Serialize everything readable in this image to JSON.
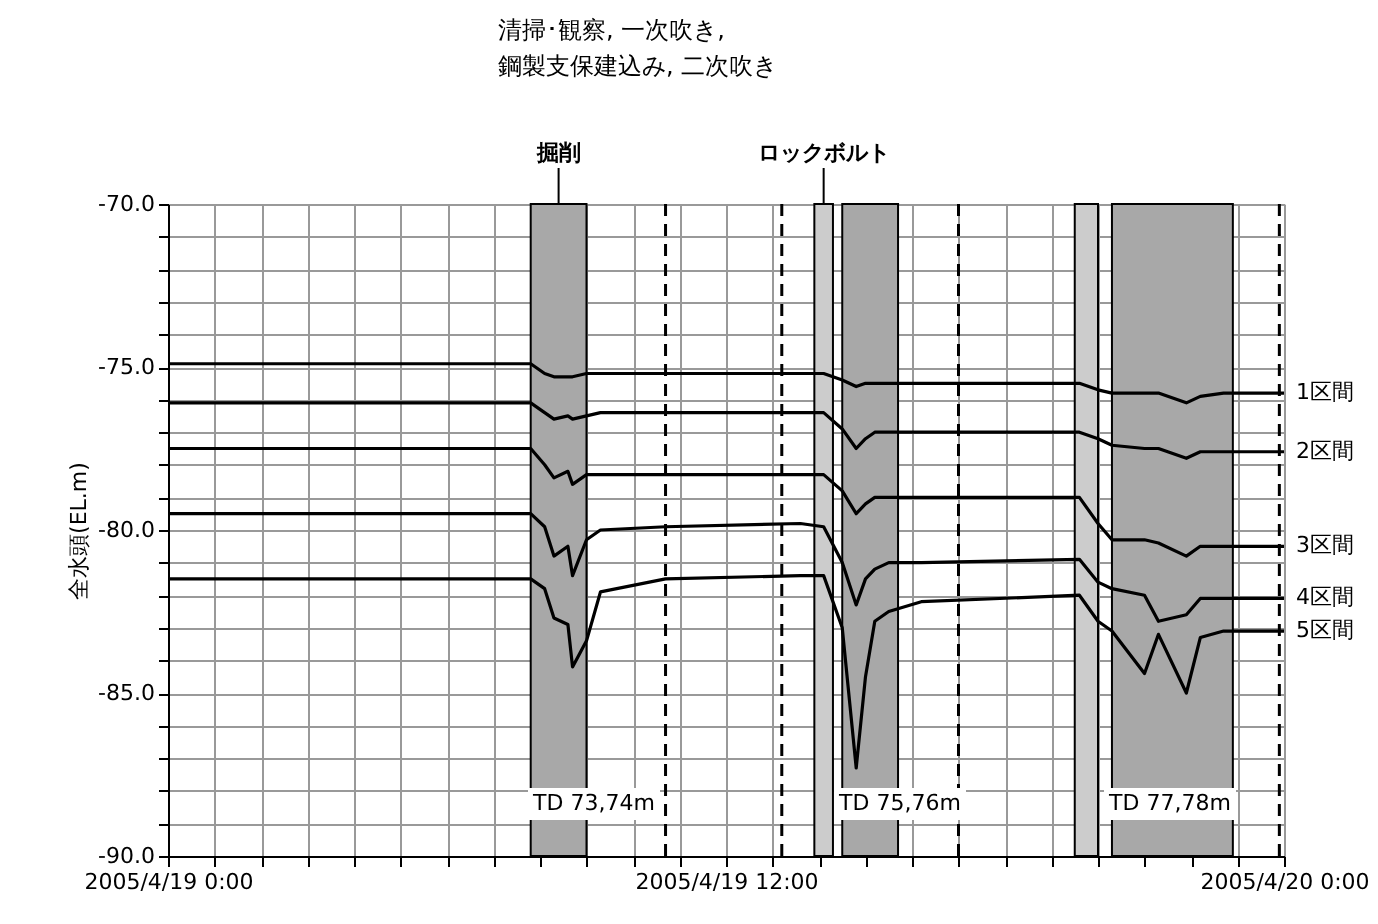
{
  "chart_data": {
    "type": "line",
    "ylabel": "全水頭(EL.m)",
    "x": [
      "2005-04-19T00:00",
      "2005-04-19T07:48",
      "2005-04-19T08:06",
      "2005-04-19T08:18",
      "2005-04-19T08:36",
      "2005-04-19T08:42",
      "2005-04-19T09:00",
      "2005-04-19T09:18",
      "2005-04-19T10:42",
      "2005-04-19T13:36",
      "2005-04-19T14:06",
      "2005-04-19T14:30",
      "2005-04-19T14:48",
      "2005-04-19T15:00",
      "2005-04-19T15:12",
      "2005-04-19T15:30",
      "2005-04-19T16:12",
      "2005-04-19T19:36",
      "2005-04-19T20:00",
      "2005-04-19T20:18",
      "2005-04-19T21:00",
      "2005-04-19T21:18",
      "2005-04-19T21:54",
      "2005-04-19T22:12",
      "2005-04-19T22:42",
      "2005-04-19T23:30",
      "2005-04-20T00:00"
    ],
    "series": [
      {
        "name": "1区間",
        "color": "#000000",
        "values": [
          -74.9,
          -74.9,
          -75.2,
          -75.3,
          -75.3,
          -75.3,
          -75.2,
          -75.2,
          -75.2,
          -75.2,
          -75.2,
          -75.4,
          -75.6,
          -75.5,
          -75.5,
          -75.5,
          -75.5,
          -75.5,
          -75.7,
          -75.8,
          -75.8,
          -75.8,
          -76.1,
          -75.9,
          -75.8,
          -75.8,
          -75.8
        ]
      },
      {
        "name": "2区間",
        "color": "#000000",
        "values": [
          -76.1,
          -76.1,
          -76.4,
          -76.6,
          -76.5,
          -76.6,
          -76.5,
          -76.4,
          -76.4,
          -76.4,
          -76.4,
          -76.9,
          -77.5,
          -77.2,
          -77.0,
          -77.0,
          -77.0,
          -77.0,
          -77.2,
          -77.4,
          -77.5,
          -77.5,
          -77.8,
          -77.6,
          -77.6,
          -77.6,
          -77.6
        ]
      },
      {
        "name": "3区間",
        "color": "#000000",
        "values": [
          -77.5,
          -77.5,
          -78.0,
          -78.4,
          -78.2,
          -78.6,
          -78.3,
          -78.3,
          -78.3,
          -78.3,
          -78.3,
          -78.8,
          -79.5,
          -79.2,
          -79.0,
          -79.0,
          -79.0,
          -79.0,
          -79.8,
          -80.3,
          -80.3,
          -80.4,
          -80.8,
          -80.5,
          -80.5,
          -80.5,
          -80.5
        ]
      },
      {
        "name": "4区間",
        "color": "#000000",
        "values": [
          -79.5,
          -79.5,
          -79.9,
          -80.8,
          -80.5,
          -81.4,
          -80.3,
          -80.0,
          -79.9,
          -79.8,
          -79.9,
          -81.0,
          -82.3,
          -81.5,
          -81.2,
          -81.0,
          -81.0,
          -80.9,
          -81.6,
          -81.8,
          -82.0,
          -82.8,
          -82.6,
          -82.1,
          -82.1,
          -82.1,
          -82.1
        ]
      },
      {
        "name": "5区間",
        "color": "#000000",
        "values": [
          -81.5,
          -81.5,
          -81.8,
          -82.7,
          -82.9,
          -84.2,
          -83.4,
          -81.9,
          -81.5,
          -81.4,
          -81.4,
          -83.0,
          -87.3,
          -84.5,
          -82.8,
          -82.5,
          -82.2,
          -82.0,
          -82.8,
          -83.1,
          -84.4,
          -83.2,
          -85.0,
          -83.3,
          -83.1,
          -83.1,
          -83.1
        ]
      }
    ],
    "xlim": [
      "2005-04-19T00:00",
      "2005-04-20T00:00"
    ],
    "xticks": [
      {
        "value": "2005-04-19T00:00",
        "label": "2005/4/19 0:00"
      },
      {
        "value": "2005-04-19T01:00",
        "label": null
      },
      {
        "value": "2005-04-19T02:00",
        "label": null
      },
      {
        "value": "2005-04-19T03:00",
        "label": null
      },
      {
        "value": "2005-04-19T04:00",
        "label": null
      },
      {
        "value": "2005-04-19T05:00",
        "label": null
      },
      {
        "value": "2005-04-19T06:00",
        "label": null
      },
      {
        "value": "2005-04-19T07:00",
        "label": null
      },
      {
        "value": "2005-04-19T08:00",
        "label": null
      },
      {
        "value": "2005-04-19T09:00",
        "label": null
      },
      {
        "value": "2005-04-19T10:00",
        "label": null
      },
      {
        "value": "2005-04-19T11:00",
        "label": null
      },
      {
        "value": "2005-04-19T12:00",
        "label": "2005/4/19 12:00"
      },
      {
        "value": "2005-04-19T13:00",
        "label": null
      },
      {
        "value": "2005-04-19T14:00",
        "label": null
      },
      {
        "value": "2005-04-19T15:00",
        "label": null
      },
      {
        "value": "2005-04-19T16:00",
        "label": null
      },
      {
        "value": "2005-04-19T17:00",
        "label": null
      },
      {
        "value": "2005-04-19T18:00",
        "label": null
      },
      {
        "value": "2005-04-19T19:00",
        "label": null
      },
      {
        "value": "2005-04-19T20:00",
        "label": null
      },
      {
        "value": "2005-04-19T21:00",
        "label": null
      },
      {
        "value": "2005-04-19T22:00",
        "label": null
      },
      {
        "value": "2005-04-19T23:00",
        "label": null
      },
      {
        "value": "2005-04-20T00:00",
        "label": "2005/4/20 0:00"
      }
    ],
    "ylim": [
      -90,
      -70
    ],
    "yticks": [
      {
        "value": -90,
        "label": "-90.0"
      },
      {
        "value": -89,
        "label": null
      },
      {
        "value": -88,
        "label": null
      },
      {
        "value": -87,
        "label": null
      },
      {
        "value": -86,
        "label": null
      },
      {
        "value": -85,
        "label": "-85.0"
      },
      {
        "value": -84,
        "label": null
      },
      {
        "value": -83,
        "label": null
      },
      {
        "value": -82,
        "label": null
      },
      {
        "value": -81,
        "label": null
      },
      {
        "value": -80,
        "label": "-80.0"
      },
      {
        "value": -79,
        "label": null
      },
      {
        "value": -78,
        "label": null
      },
      {
        "value": -77,
        "label": null
      },
      {
        "value": -76,
        "label": null
      },
      {
        "value": -75,
        "label": "-75.0"
      },
      {
        "value": -74,
        "label": null
      },
      {
        "value": -73,
        "label": null
      },
      {
        "value": -72,
        "label": null
      },
      {
        "value": -71,
        "label": null
      },
      {
        "value": -70,
        "label": "-70.0"
      }
    ],
    "grid": true,
    "line_style": "solid",
    "bands": [
      {
        "axis": "x",
        "from": "2005-04-19T07:48",
        "to": "2005-04-19T09:00",
        "label": "掘削",
        "color": "#a8a8a8"
      },
      {
        "axis": "x",
        "from": "2005-04-19T13:54",
        "to": "2005-04-19T14:18",
        "label": "ロックボルト",
        "color": "#cccccc"
      },
      {
        "axis": "x",
        "from": "2005-04-19T14:30",
        "to": "2005-04-19T15:42",
        "color": "#a8a8a8"
      },
      {
        "axis": "x",
        "from": "2005-04-19T19:30",
        "to": "2005-04-19T20:00",
        "color": "#cccccc"
      },
      {
        "axis": "x",
        "from": "2005-04-19T20:18",
        "to": "2005-04-19T22:54",
        "color": "#a8a8a8"
      }
    ],
    "ref_lines": [
      {
        "axis": "x",
        "value": "2005-04-19T10:42",
        "line_style": "dashed",
        "color": "#000000"
      },
      {
        "axis": "x",
        "value": "2005-04-19T13:12",
        "line_style": "dashed",
        "color": "#000000"
      },
      {
        "axis": "x",
        "value": "2005-04-19T17:00",
        "line_style": "dashed",
        "color": "#000000"
      },
      {
        "axis": "x",
        "value": "2005-04-19T23:54",
        "line_style": "dashed",
        "color": "#000000"
      }
    ],
    "annotations": [
      "清掃･観察, 一次吹き, 鋼製支保建込み, 二次吹き",
      "TD 73,74m",
      "TD 75,76m",
      "TD 77,78m"
    ]
  }
}
